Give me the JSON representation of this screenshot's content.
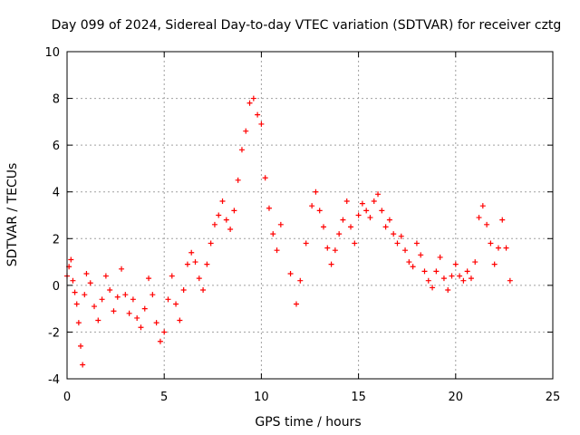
{
  "chart_data": {
    "type": "scatter",
    "title": "Day 099 of 2024, Sidereal Day-to-day VTEC variation (SDTVAR) for receiver cztg",
    "xlabel": "GPS time / hours",
    "ylabel": "SDTVAR / TECUs",
    "xlim": [
      0,
      25
    ],
    "ylim": [
      -4,
      10
    ],
    "xticks": [
      0,
      5,
      10,
      15,
      20,
      25
    ],
    "yticks": [
      -4,
      -2,
      0,
      2,
      4,
      6,
      8,
      10
    ],
    "xtick_labels": [
      "0",
      "5",
      "10",
      "15",
      "20",
      "25"
    ],
    "ytick_labels": [
      "-4",
      "-2",
      "0",
      "2",
      "4",
      "6",
      "8",
      "10"
    ],
    "grid": true,
    "marker": "+",
    "color": "#ff0000",
    "series": [
      {
        "name": "cztg",
        "x": [
          0.0,
          0.1,
          0.2,
          0.3,
          0.4,
          0.5,
          0.6,
          0.7,
          0.8,
          0.9,
          1.0,
          1.2,
          1.4,
          1.6,
          1.8,
          2.0,
          2.2,
          2.4,
          2.6,
          2.8,
          3.0,
          3.2,
          3.4,
          3.6,
          3.8,
          4.0,
          4.2,
          4.4,
          4.6,
          4.8,
          5.0,
          5.2,
          5.4,
          5.6,
          5.8,
          6.0,
          6.2,
          6.4,
          6.6,
          6.8,
          7.0,
          7.2,
          7.4,
          7.6,
          7.8,
          8.0,
          8.2,
          8.4,
          8.6,
          8.8,
          9.0,
          9.2,
          9.4,
          9.6,
          9.8,
          10.0,
          10.2,
          10.4,
          10.6,
          10.8,
          11.0,
          11.5,
          11.8,
          12.0,
          12.3,
          12.6,
          12.8,
          13.0,
          13.2,
          13.4,
          13.6,
          13.8,
          14.0,
          14.2,
          14.4,
          14.6,
          14.8,
          15.0,
          15.2,
          15.4,
          15.6,
          15.8,
          16.0,
          16.2,
          16.4,
          16.6,
          16.8,
          17.0,
          17.2,
          17.4,
          17.6,
          17.8,
          18.0,
          18.2,
          18.4,
          18.6,
          18.8,
          19.0,
          19.2,
          19.4,
          19.6,
          19.8,
          20.0,
          20.2,
          20.4,
          20.6,
          20.8,
          21.0,
          21.2,
          21.4,
          21.6,
          21.8,
          22.0,
          22.2,
          22.4,
          22.6,
          22.8
        ],
        "y": [
          0.4,
          0.8,
          1.1,
          0.2,
          -0.3,
          -0.8,
          -1.6,
          -2.6,
          -3.4,
          -0.4,
          0.5,
          0.1,
          -0.9,
          -1.5,
          -0.6,
          0.4,
          -0.2,
          -1.1,
          -0.5,
          0.7,
          -0.4,
          -1.2,
          -0.6,
          -1.4,
          -1.8,
          -1.0,
          0.3,
          -0.4,
          -1.6,
          -2.4,
          -2.0,
          -0.6,
          0.4,
          -0.8,
          -1.5,
          -0.2,
          0.9,
          1.4,
          1.0,
          0.3,
          -0.2,
          0.9,
          1.8,
          2.6,
          3.0,
          3.6,
          2.8,
          2.4,
          3.2,
          4.5,
          5.8,
          6.6,
          7.8,
          8.0,
          7.3,
          6.9,
          4.6,
          3.3,
          2.2,
          1.5,
          2.6,
          0.5,
          -0.8,
          0.2,
          1.8,
          3.4,
          4.0,
          3.2,
          2.5,
          1.6,
          0.9,
          1.5,
          2.2,
          2.8,
          3.6,
          2.5,
          1.8,
          3.0,
          3.5,
          3.2,
          2.9,
          3.6,
          3.9,
          3.2,
          2.5,
          2.8,
          2.2,
          1.8,
          2.1,
          1.5,
          1.0,
          0.8,
          1.8,
          1.3,
          0.6,
          0.2,
          -0.1,
          0.6,
          1.2,
          0.3,
          -0.2,
          0.4,
          0.9,
          0.4,
          0.2,
          0.6,
          0.3,
          1.0,
          2.9,
          3.4,
          2.6,
          1.8,
          0.9,
          1.6,
          2.8,
          1.6,
          0.2
        ]
      }
    ]
  }
}
